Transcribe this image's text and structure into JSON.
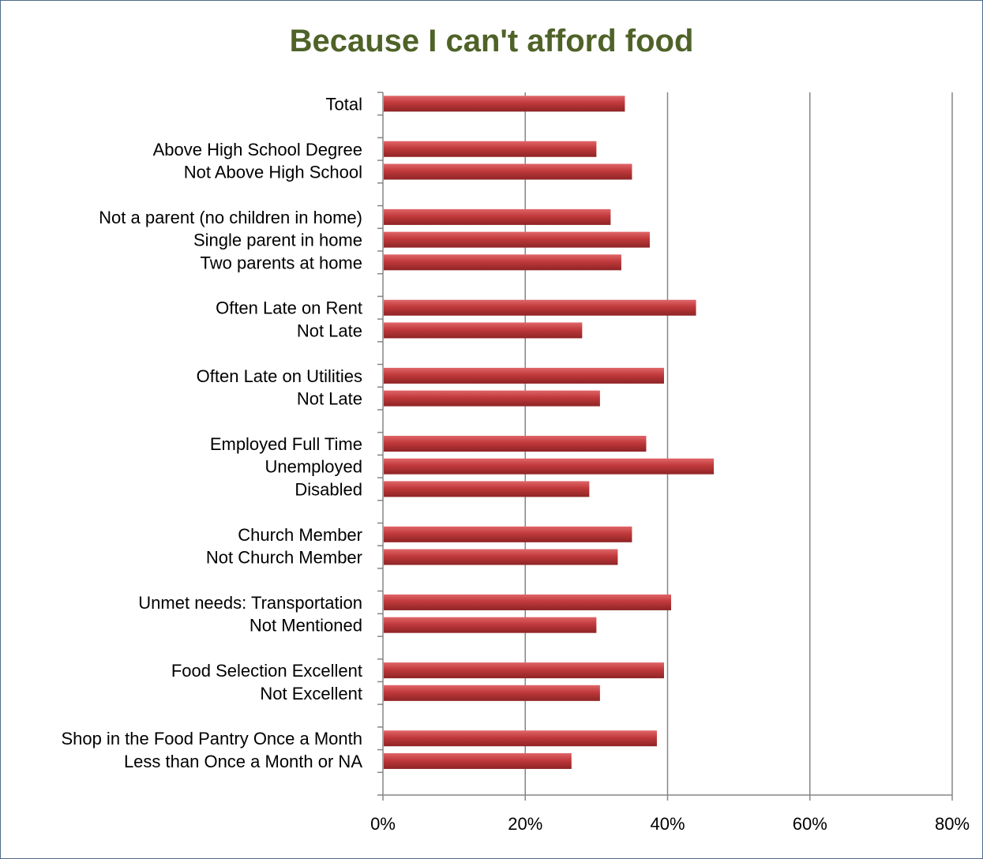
{
  "chart_data": {
    "type": "bar",
    "orientation": "horizontal",
    "title": "Because I can't afford food",
    "xlabel": "",
    "ylabel": "",
    "xlim": [
      0,
      80
    ],
    "x_ticks": [
      "0%",
      "20%",
      "40%",
      "60%",
      "80%"
    ],
    "grid": "vertical",
    "legend": "none",
    "bar_color": "#c0393b",
    "title_color": "#4f6228",
    "groups": [
      {
        "categories": [
          "Total"
        ],
        "values": [
          34
        ]
      },
      {
        "categories": [
          "Above High School Degree",
          "Not Above High School"
        ],
        "values": [
          30,
          35
        ]
      },
      {
        "categories": [
          "Not a parent (no children in home)",
          "Single parent in home",
          "Two parents at home"
        ],
        "values": [
          32,
          37.5,
          33.5
        ]
      },
      {
        "categories": [
          "Often Late on Rent",
          "Not Late"
        ],
        "values": [
          44,
          28
        ]
      },
      {
        "categories": [
          "Often Late on Utilities",
          "Not Late"
        ],
        "values": [
          39.5,
          30.5
        ]
      },
      {
        "categories": [
          "Employed Full Time",
          "Unemployed",
          "Disabled"
        ],
        "values": [
          37,
          46.5,
          29
        ]
      },
      {
        "categories": [
          "Church Member",
          "Not Church Member"
        ],
        "values": [
          35,
          33
        ]
      },
      {
        "categories": [
          "Unmet needs: Transportation",
          "Not Mentioned"
        ],
        "values": [
          40.5,
          30
        ]
      },
      {
        "categories": [
          "Food Selection Excellent",
          "Not Excellent"
        ],
        "values": [
          39.5,
          30.5
        ]
      },
      {
        "categories": [
          "Shop in the Food Pantry Once a Month",
          "Less than Once a Month or NA"
        ],
        "values": [
          38.5,
          26.5
        ]
      }
    ]
  }
}
